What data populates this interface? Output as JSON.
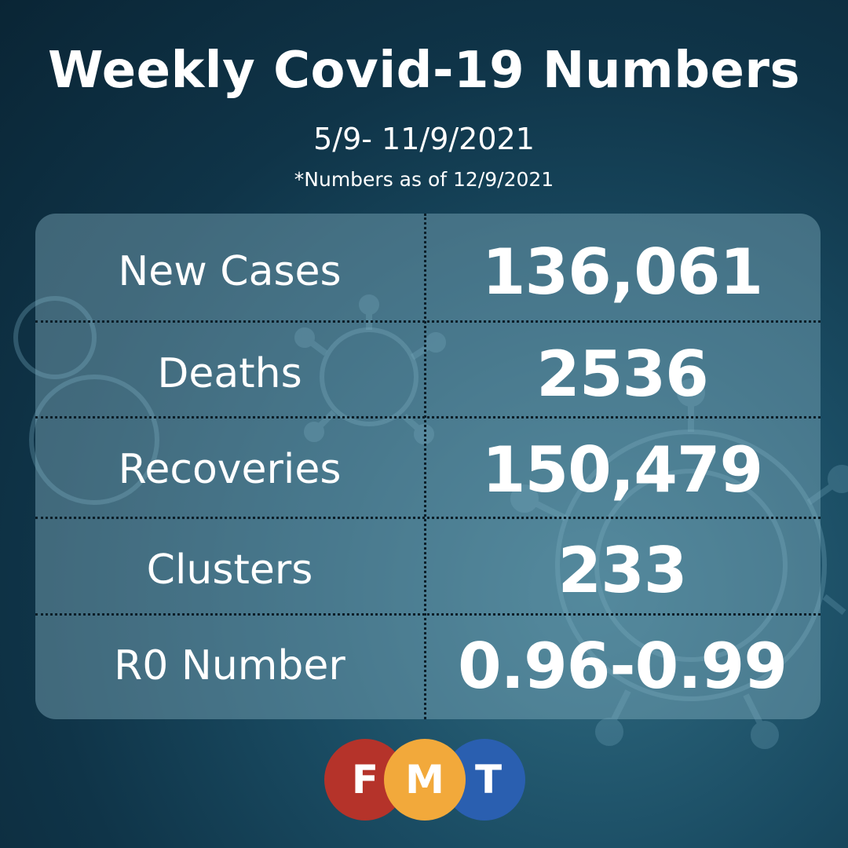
{
  "title": "Weekly Covid-19 Numbers",
  "date_range": "5/9- 11/9/2021",
  "as_of_note": "*Numbers as of 12/9/2021",
  "stats": [
    {
      "label": "New Cases",
      "value": "136,061"
    },
    {
      "label": "Deaths",
      "value": "2536"
    },
    {
      "label": "Recoveries",
      "value": "150,479"
    },
    {
      "label": "Clusters",
      "value": "233"
    },
    {
      "label": "R0 Number",
      "value": "0.96-0.99"
    }
  ],
  "logo": {
    "letters": [
      "F",
      "M",
      "T"
    ],
    "colors": [
      "#b5332a",
      "#f2a93b",
      "#2a5fb0"
    ]
  },
  "colors": {
    "background": "#13394d",
    "panel": "#87b4c6",
    "text": "#ffffff"
  }
}
